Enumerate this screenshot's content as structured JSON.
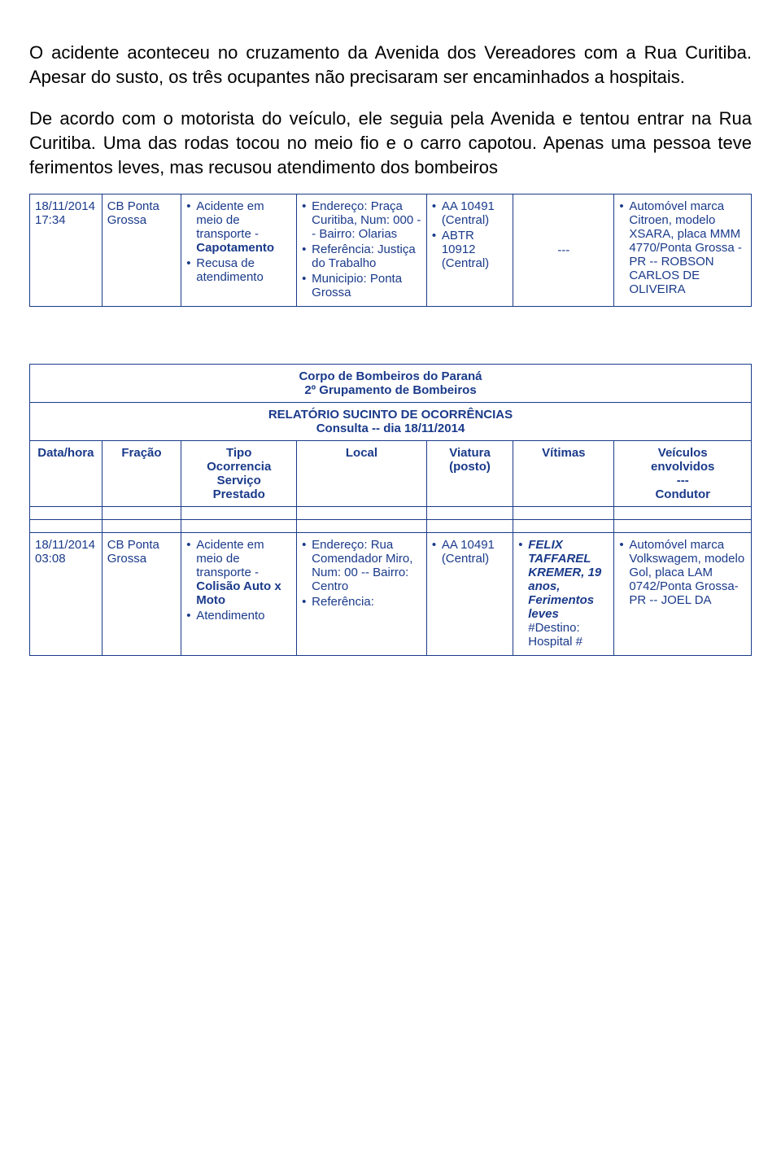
{
  "colors": {
    "text_body": "#000000",
    "text_table": "#1a3a8a",
    "border": "#1a3a8a",
    "background": "#ffffff"
  },
  "paragraphs": {
    "p1": "O acidente aconteceu no cruzamento da Avenida dos Vereadores com a Rua Curitiba. Apesar do susto, os três ocupantes não precisaram ser encaminhados a hospitais.",
    "p2": "De acordo com o motorista do veículo, ele seguia pela Avenida e tentou entrar na Rua Curitiba. Uma das rodas tocou no meio fio e o carro capotou. Apenas uma pessoa teve ferimentos leves, mas recusou atendimento dos bombeiros"
  },
  "table1": {
    "row": {
      "datahora": "18/11/2014 17:34",
      "fracao": "CB Ponta Grossa",
      "tipo_l1_pre": "Acidente em meio de transporte - ",
      "tipo_l1_bold": "Capotamento",
      "tipo_l2": "Recusa de atendimento",
      "loc_end_label": "Endereço: ",
      "loc_end_val": "Praça Curitiba, Num: 000 -- Bairro: Olarias",
      "loc_ref_label": "Referência: ",
      "loc_ref_val": "Justiça do Trabalho",
      "loc_mun_label": "Municipio: ",
      "loc_mun_val": "Ponta Grossa",
      "via_l1": "AA 10491 (Central)",
      "via_l2": "ABTR 10912 (Central)",
      "vit": "---",
      "vei_l1_pre": "Automóvel marca Citroen, modelo XSARA, placa MMM 4770/Ponta Grossa - PR -- ROBSON CARLOS DE OLIVEIRA"
    }
  },
  "header2": {
    "line1": "Corpo de Bombeiros do Paraná",
    "line2": "2º Grupamento de Bombeiros",
    "line3": "RELATÓRIO SUCINTO DE OCORRÊNCIAS",
    "line4": "Consulta -- dia 18/11/2014"
  },
  "columns": {
    "datahora": "Data/hora",
    "fracao": "Fração",
    "tipo_l1": "Tipo",
    "tipo_l2": "Ocorrencia",
    "tipo_l3": "Serviço",
    "tipo_l4": "Prestado",
    "local": "Local",
    "viatura_l1": "Viatura",
    "viatura_l2": "(posto)",
    "vitimas": "Vítimas",
    "vei_l1": "Veículos",
    "vei_l2": "envolvidos",
    "vei_l3": "---",
    "vei_l4": "Condutor"
  },
  "table2": {
    "row": {
      "datahora": "18/11/2014 03:08",
      "fracao": "CB Ponta Grossa",
      "tipo_l1_pre": "Acidente em meio de transporte - ",
      "tipo_l1_bold": "Colisão Auto x Moto",
      "tipo_l2": "Atendimento",
      "loc_end_label": "Endereço: ",
      "loc_end_val": "Rua Comendador Miro, Num: 00 -- Bairro: Centro",
      "loc_ref_label": "Referência:",
      "via_l1": "AA 10491 (Central)",
      "vit_l1_bold": "FELIX TAFFAREL KREMER, 19 anos, Ferimentos leves",
      "vit_l2": "#Destino: Hospital #",
      "vei_l1": "Automóvel marca Volkswagem, modelo Gol, placa LAM 0742/Ponta Grossa-PR -- JOEL DA"
    }
  }
}
